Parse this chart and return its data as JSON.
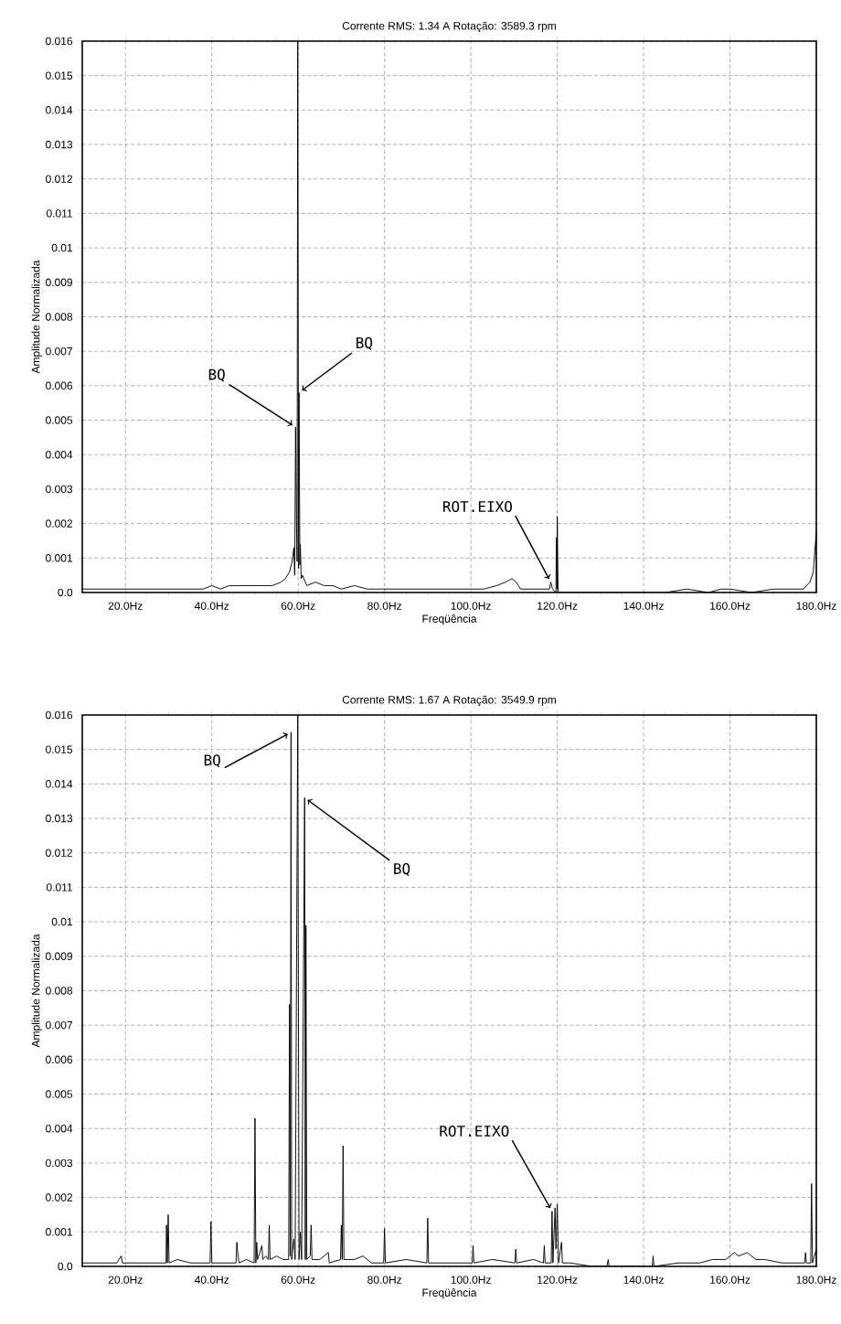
{
  "chart_data": [
    {
      "type": "line",
      "title": "Corrente RMS: 1.34 A    Rotação: 3589.3 rpm",
      "xlabel": "Freqüência",
      "ylabel": "Amplitude Normalizada",
      "color": "#000000",
      "grid": true,
      "xlim": [
        10,
        180
      ],
      "ylim": [
        0,
        0.016
      ],
      "xticks": [
        {
          "value": 20,
          "label": "20.0Hz"
        },
        {
          "value": 40,
          "label": "40.0Hz"
        },
        {
          "value": 60,
          "label": "60.0Hz"
        },
        {
          "value": 80,
          "label": "80.0Hz"
        },
        {
          "value": 100,
          "label": "100.0Hz"
        },
        {
          "value": 120,
          "label": "120.0Hz"
        },
        {
          "value": 140,
          "label": "140.0Hz"
        },
        {
          "value": 160,
          "label": "160.0Hz"
        },
        {
          "value": 180,
          "label": "180.0Hz"
        }
      ],
      "yticks": [
        {
          "value": 0,
          "label": "0.0"
        },
        0.001,
        0.002,
        0.003,
        0.004,
        0.005,
        0.006,
        0.007,
        0.008,
        0.009,
        0.01,
        0.011,
        0.012,
        0.013,
        0.014,
        0.015,
        0.016
      ],
      "x": [
        10,
        12,
        15,
        18,
        20,
        23,
        26,
        30,
        33,
        36,
        38,
        40,
        42,
        44,
        46,
        48,
        50,
        52,
        54,
        56,
        57,
        58,
        58.6,
        59,
        59.2,
        59.4,
        59.6,
        59.75,
        59.9,
        60.1,
        60.2,
        60.4,
        60.5,
        60.7,
        61,
        62,
        64,
        66,
        68,
        70,
        73,
        76,
        80,
        84,
        88,
        92,
        96,
        100,
        103,
        106,
        108,
        109.5,
        110.5,
        111.5,
        114,
        117,
        118.2,
        118.5,
        118.9,
        119.7,
        119.8,
        119.95,
        120,
        120.2,
        125,
        130,
        135,
        140,
        145,
        150,
        155,
        158,
        160,
        165,
        170,
        174,
        177,
        178.5,
        179.3,
        180
      ],
      "values": [
        0.0001,
        0.0001,
        0.0001,
        0.0001,
        0.0001,
        0.0001,
        0.0001,
        0.0001,
        0.0001,
        0.0001,
        0.0001,
        0.0002,
        0.0001,
        0.0002,
        0.0002,
        0.0002,
        0.0002,
        0.0002,
        0.0002,
        0.0003,
        0.0004,
        0.0006,
        0.0009,
        0.0013,
        0.0005,
        0.0048,
        0.0021,
        0.0009,
        0.016,
        0.0007,
        0.0058,
        0.0008,
        0.0014,
        0.0004,
        0.0005,
        0.0002,
        0.0003,
        0.0002,
        0.0002,
        0.0001,
        0.0002,
        0.0001,
        0.0001,
        0.0001,
        0.0001,
        0.0001,
        0.0001,
        0.0001,
        0.0001,
        0.0002,
        0.0003,
        0.0004,
        0.0003,
        0.0001,
        0.0001,
        0.0001,
        0.0001,
        0.0003,
        0.0001,
        0,
        0.0016,
        0.0001,
        0.0022,
        0,
        0,
        0,
        0,
        0,
        0,
        0.0001,
        0,
        0.0001,
        0.0001,
        0,
        0.0001,
        0.0001,
        0.0001,
        0.0003,
        0.0006,
        0.0018
      ],
      "annotations": [
        {
          "text": "BQ",
          "x": 59.4,
          "y": 0.0048
        },
        {
          "text": "BQ",
          "x": 60.2,
          "y": 0.0058
        },
        {
          "text": "ROT.EIXO",
          "x": 118.5,
          "y": 0.0003
        }
      ]
    },
    {
      "type": "line",
      "title": "Corrente RMS: 1.67 A    Rotação: 3549.9 rpm",
      "xlabel": "Freqüência",
      "ylabel": "Amplitude Normalizada",
      "color": "#000000",
      "grid": true,
      "xlim": [
        10,
        180
      ],
      "ylim": [
        0,
        0.016
      ],
      "xticks": [
        {
          "value": 20,
          "label": "20.0Hz"
        },
        {
          "value": 40,
          "label": "40.0Hz"
        },
        {
          "value": 60,
          "label": "60.0Hz"
        },
        {
          "value": 80,
          "label": "80.0Hz"
        },
        {
          "value": 100,
          "label": "100.0Hz"
        },
        {
          "value": 120,
          "label": "120.0Hz"
        },
        {
          "value": 140,
          "label": "140.0Hz"
        },
        {
          "value": 160,
          "label": "160.0Hz"
        },
        {
          "value": 180,
          "label": "180.0Hz"
        }
      ],
      "yticks": [
        {
          "value": 0,
          "label": "0.0"
        },
        0.001,
        0.002,
        0.003,
        0.004,
        0.005,
        0.006,
        0.007,
        0.008,
        0.009,
        0.01,
        0.011,
        0.012,
        0.013,
        0.014,
        0.015,
        0.016
      ],
      "x": [
        10,
        12,
        14,
        16,
        18,
        19,
        19.3,
        22,
        25,
        27,
        29.4,
        29.5,
        29.7,
        29.9,
        30.1,
        32,
        35,
        37,
        39.6,
        39.8,
        40,
        43,
        45.6,
        45.8,
        46,
        46.3,
        48,
        49.8,
        50,
        50.2,
        50.4,
        50.6,
        51.6,
        51.8,
        52.5,
        53.1,
        53.3,
        53.5,
        55,
        56.5,
        57.8,
        58,
        58.15,
        58.35,
        58.5,
        59,
        59.3,
        59.9,
        60.2,
        60.5,
        60.8,
        61.5,
        61.65,
        61.8,
        62,
        62.8,
        63,
        63.2,
        65,
        67,
        67.2,
        69.8,
        70,
        70.2,
        70.4,
        70.6,
        73,
        75,
        77,
        79.8,
        80,
        80.2,
        85,
        89.8,
        90,
        90.2,
        95,
        100.3,
        100.5,
        100.7,
        105,
        110.2,
        110.4,
        110.6,
        114.5,
        116.8,
        117,
        117.2,
        118.6,
        118.8,
        119,
        119.5,
        119.7,
        120,
        120.3,
        121,
        121.2,
        123,
        128,
        131.5,
        131.8,
        132,
        136,
        140,
        142,
        142.2,
        142.4,
        148,
        153,
        156,
        159,
        161,
        162,
        164,
        166,
        168,
        172,
        175,
        177.3,
        177.5,
        177.7,
        178.7,
        178.9,
        179.1,
        180
      ],
      "values": [
        0.0001,
        0.0001,
        0.0001,
        0.0001,
        0.0001,
        0.0003,
        0.0001,
        0.0001,
        0.0001,
        0.0001,
        0.0001,
        0.0012,
        0.0001,
        0.0015,
        0.0001,
        0.0002,
        0.0001,
        0.0001,
        0.0001,
        0.0013,
        0.0001,
        0.0001,
        0.0001,
        0.0007,
        0.0004,
        0.0001,
        0.0002,
        0.0001,
        0.0043,
        0.0001,
        0.0007,
        0.0002,
        0.0006,
        0.0002,
        0.0003,
        0.0002,
        0.0012,
        0.0002,
        0.0003,
        0.0002,
        0.0002,
        0.0076,
        0.0003,
        0.0155,
        0.0002,
        0.0008,
        0.0002,
        0.016,
        0.0002,
        0.001,
        0.0002,
        0.0136,
        0.0002,
        0.0099,
        0.0002,
        0.0003,
        0.0012,
        0.0002,
        0.0002,
        0.0004,
        0.0001,
        0.0002,
        0.0012,
        0.0002,
        0.0035,
        0.0002,
        0.0002,
        0.0003,
        0.0001,
        0.0001,
        0.0011,
        0.0001,
        0.0002,
        0.0001,
        0.0014,
        0.0001,
        0.0001,
        0.0001,
        0.0006,
        0.0001,
        0.0002,
        0.0001,
        0.0005,
        0.0001,
        0.0002,
        0.0001,
        0.0006,
        0.0001,
        0.0001,
        0.0016,
        0.0001,
        0.0017,
        0.0005,
        0.0018,
        0.0001,
        0.0007,
        0.0001,
        0.0001,
        0,
        0,
        0.0002,
        0,
        0,
        0,
        0,
        0.0003,
        0,
        0.0001,
        0.0001,
        0.0002,
        0.0002,
        0.0004,
        0.0003,
        0.0004,
        0.0002,
        0.0002,
        0.0001,
        0.0001,
        0.0001,
        0.0004,
        0.0001,
        0.0001,
        0.0024,
        0.0001,
        0.0005
      ],
      "annotations": [
        {
          "text": "BQ",
          "x": 58.35,
          "y": 0.0155
        },
        {
          "text": "BQ",
          "x": 61.5,
          "y": 0.0136
        },
        {
          "text": "ROT.EIXO",
          "x": 118.8,
          "y": 0.0016
        }
      ]
    }
  ]
}
